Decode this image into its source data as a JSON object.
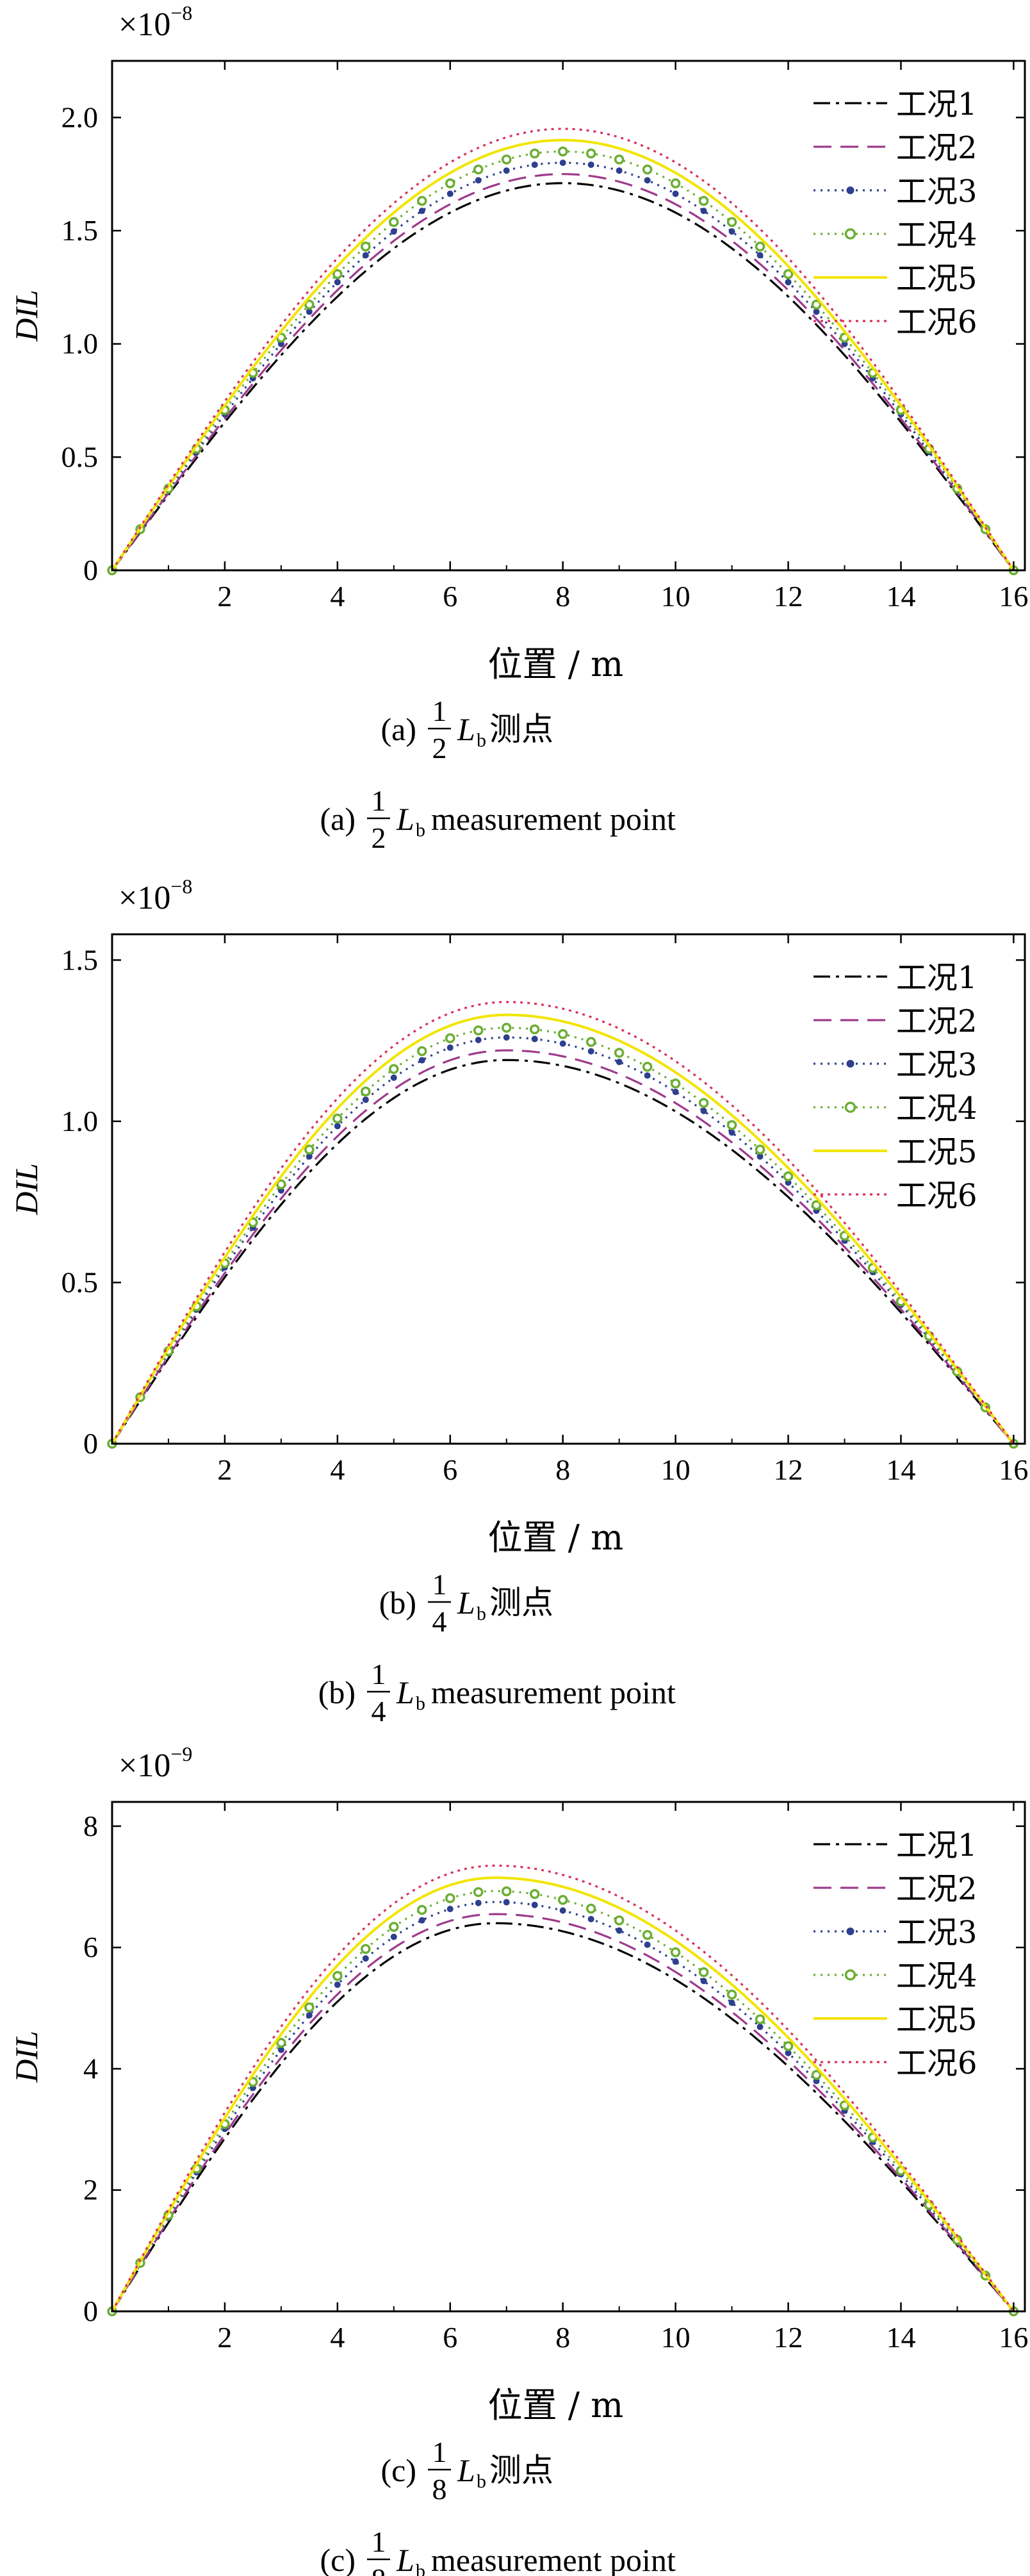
{
  "chart_data": [
    {
      "type": "line",
      "exponent_label": "×10",
      "exponent_power": "−8",
      "ylabel": "DIL",
      "xlabel": "位置 / m",
      "caption_prefix": "(a)",
      "caption_num": "1",
      "caption_den": "2",
      "caption_L": "L",
      "caption_sub": "b",
      "caption_cn": "测点",
      "caption_en": "measurement point",
      "xlim": [
        0,
        16.2
      ],
      "ylim": [
        0,
        2.25
      ],
      "xticks": [
        2,
        4,
        6,
        8,
        10,
        12,
        14,
        16
      ],
      "yticks": [
        0,
        0.5,
        1.0,
        1.5,
        2.0
      ],
      "ytick_labels": [
        "0",
        "0.5",
        "1.0",
        "1.5",
        "2.0"
      ],
      "peak_x": 8.0,
      "x_end": 16.0,
      "series": [
        {
          "name": "工况1",
          "color": "#000000",
          "style": "dashdot",
          "peak": 1.71
        },
        {
          "name": "工况2",
          "color": "#9e3a8c",
          "style": "dashed",
          "peak": 1.75
        },
        {
          "name": "工况3",
          "color": "#2e3f8f",
          "style": "dotted-dots",
          "peak": 1.8
        },
        {
          "name": "工况4",
          "color": "#6cae34",
          "style": "dotted-circles",
          "peak": 1.85
        },
        {
          "name": "工况5",
          "color": "#f2e400",
          "style": "solid",
          "peak": 1.9
        },
        {
          "name": "工况6",
          "color": "#d9305a",
          "style": "dotted",
          "peak": 1.95
        }
      ]
    },
    {
      "type": "line",
      "exponent_label": "×10",
      "exponent_power": "−8",
      "ylabel": "DIL",
      "xlabel": "位置 / m",
      "caption_prefix": "(b)",
      "caption_num": "1",
      "caption_den": "4",
      "caption_L": "L",
      "caption_sub": "b",
      "caption_cn": "测点",
      "caption_en": "measurement point",
      "xlim": [
        0,
        16.2
      ],
      "ylim": [
        0,
        1.58
      ],
      "xticks": [
        2,
        4,
        6,
        8,
        10,
        12,
        14,
        16
      ],
      "yticks": [
        0,
        0.5,
        1.0,
        1.5
      ],
      "ytick_labels": [
        "0",
        "0.5",
        "1.0",
        "1.5"
      ],
      "peak_x": 7.0,
      "x_end": 16.0,
      "series": [
        {
          "name": "工况1",
          "color": "#000000",
          "style": "dashdot",
          "peak": 1.19
        },
        {
          "name": "工况2",
          "color": "#9e3a8c",
          "style": "dashed",
          "peak": 1.22
        },
        {
          "name": "工况3",
          "color": "#2e3f8f",
          "style": "dotted-dots",
          "peak": 1.26
        },
        {
          "name": "工况4",
          "color": "#6cae34",
          "style": "dotted-circles",
          "peak": 1.29
        },
        {
          "name": "工况5",
          "color": "#f2e400",
          "style": "solid",
          "peak": 1.33
        },
        {
          "name": "工况6",
          "color": "#d9305a",
          "style": "dotted",
          "peak": 1.37
        }
      ]
    },
    {
      "type": "line",
      "exponent_label": "×10",
      "exponent_power": "−9",
      "ylabel": "DIL",
      "xlabel": "位置 / m",
      "caption_prefix": "(c)",
      "caption_num": "1",
      "caption_den": "8",
      "caption_L": "L",
      "caption_sub": "b",
      "caption_cn": "测点",
      "caption_en": "measurement point",
      "xlim": [
        0,
        16.2
      ],
      "ylim": [
        0,
        8.4
      ],
      "xticks": [
        2,
        4,
        6,
        8,
        10,
        12,
        14,
        16
      ],
      "yticks": [
        0,
        2,
        4,
        6,
        8
      ],
      "ytick_labels": [
        "0",
        "2",
        "4",
        "6",
        "8"
      ],
      "peak_x": 6.8,
      "x_end": 16.0,
      "series": [
        {
          "name": "工况1",
          "color": "#000000",
          "style": "dashdot",
          "peak": 6.4
        },
        {
          "name": "工况2",
          "color": "#9e3a8c",
          "style": "dashed",
          "peak": 6.55
        },
        {
          "name": "工况3",
          "color": "#2e3f8f",
          "style": "dotted-dots",
          "peak": 6.75
        },
        {
          "name": "工况4",
          "color": "#6cae34",
          "style": "dotted-circles",
          "peak": 6.93
        },
        {
          "name": "工况5",
          "color": "#f2e400",
          "style": "solid",
          "peak": 7.15
        },
        {
          "name": "工况6",
          "color": "#d9305a",
          "style": "dotted",
          "peak": 7.35
        }
      ]
    }
  ]
}
